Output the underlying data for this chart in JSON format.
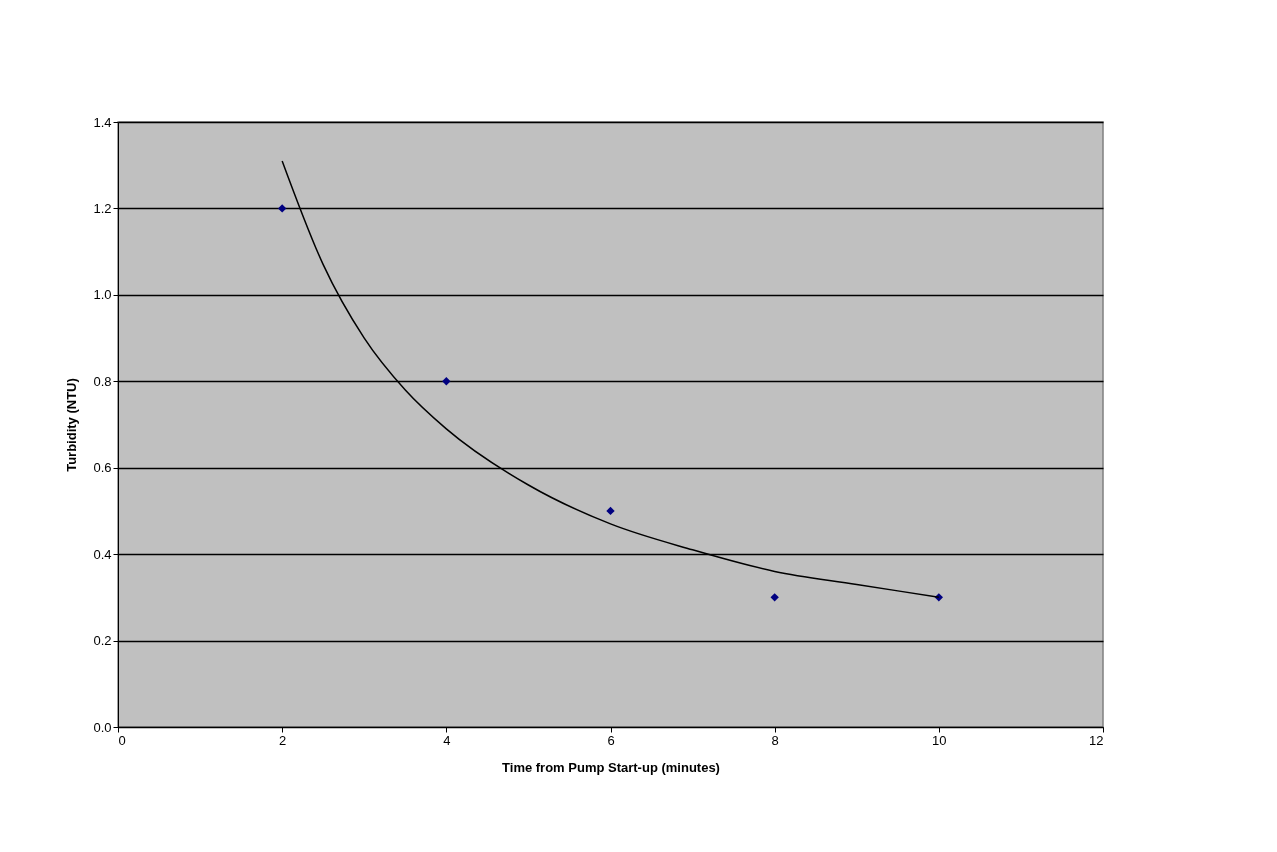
{
  "chart_data": {
    "type": "scatter",
    "xlabel": "Time from Pump Start-up (minutes)",
    "ylabel": "Turbidity (NTU)",
    "series": [
      {
        "type": "scatter",
        "color": "#000080",
        "marker": "diamond",
        "x": [
          2,
          4,
          6,
          8,
          10
        ],
        "values": [
          1.2,
          0.8,
          0.5,
          0.3,
          0.3
        ]
      },
      {
        "type": "line",
        "color": "#000000",
        "marker": "none",
        "line_style": "solid",
        "x": [
          2,
          2.5,
          3,
          3.5,
          4,
          5,
          6,
          7,
          8,
          9,
          10
        ],
        "values": [
          1.31,
          1.07,
          0.9,
          0.78,
          0.69,
          0.56,
          0.47,
          0.41,
          0.36,
          0.33,
          0.3
        ]
      }
    ],
    "xlim": [
      0,
      12
    ],
    "xticks": [
      0,
      2,
      4,
      6,
      8,
      10,
      12
    ],
    "ylim": [
      0,
      1.4
    ],
    "yticks": [
      {
        "value": 0,
        "label": "0.0"
      },
      {
        "value": 0.2,
        "label": "0.2"
      },
      {
        "value": 0.4,
        "label": "0.4"
      },
      {
        "value": 0.6,
        "label": "0.6"
      },
      {
        "value": 0.8,
        "label": "0.8"
      },
      {
        "value": 1.0,
        "label": "1.0"
      },
      {
        "value": 1.2,
        "label": "1.2"
      },
      {
        "value": 1.4,
        "label": "1.4"
      }
    ],
    "grid": "y",
    "legend": false
  }
}
